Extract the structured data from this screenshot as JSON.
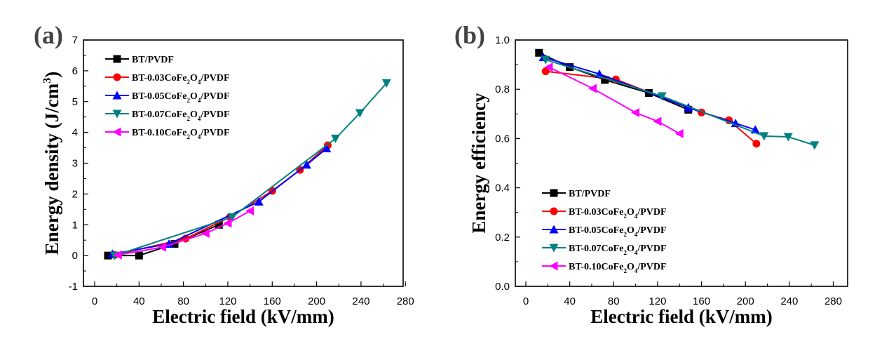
{
  "chart_data": [
    {
      "type": "line",
      "panel_label": "(a)",
      "title": "",
      "xlabel": "Electric field (kV/mm)",
      "ylabel": "Energy density (J/cm3)",
      "ylabel_main": "Energy density (J/cm",
      "ylabel_sup": "3",
      "ylabel_end": ")",
      "xlim": [
        -10,
        290
      ],
      "ylim": [
        -1,
        7
      ],
      "xticks": [
        0,
        40,
        80,
        120,
        160,
        200,
        240,
        280
      ],
      "yticks": [
        -1,
        0,
        1,
        2,
        3,
        4,
        5,
        6,
        7
      ],
      "grid": false,
      "legend_position": "top-left",
      "series": [
        {
          "name": "BT/PVDF",
          "label_parts": [
            "BT/PVDF"
          ],
          "color": "#000000",
          "marker": "square",
          "x": [
            12,
            40,
            72,
            112
          ],
          "y": [
            0.0,
            0.0,
            0.38,
            1.0
          ]
        },
        {
          "name": "BT-0.03CoFe2O4/PVDF",
          "label_parts": [
            "BT-0.03CoFe",
            "2",
            "O",
            "4",
            "/PVDF"
          ],
          "color": "#ff0000",
          "marker": "circle",
          "x": [
            18,
            82,
            122,
            160,
            185,
            210
          ],
          "y": [
            0.02,
            0.55,
            1.25,
            2.1,
            2.78,
            3.58
          ]
        },
        {
          "name": "BT-0.05CoFe2O4/PVDF",
          "label_parts": [
            "BT-0.05CoFe",
            "2",
            "O",
            "4",
            "/PVDF"
          ],
          "color": "#0000ff",
          "marker": "triangle-up",
          "x": [
            16,
            67,
            148,
            191,
            209
          ],
          "y": [
            0.05,
            0.38,
            1.75,
            2.95,
            3.48
          ]
        },
        {
          "name": "BT-0.07CoFe2O4/PVDF",
          "label_parts": [
            "BT-0.07CoFe",
            "2",
            "O",
            "4",
            "/PVDF"
          ],
          "color": "#008080",
          "marker": "triangle-down",
          "x": [
            18,
            124,
            217,
            239,
            263
          ],
          "y": [
            0.0,
            1.25,
            3.8,
            4.63,
            5.6
          ]
        },
        {
          "name": "BT-0.10CoFe2O4/PVDF",
          "label_parts": [
            "BT-0.10CoFe",
            "2",
            "O",
            "4",
            "/PVDF"
          ],
          "color": "#ff00ff",
          "marker": "triangle-left",
          "x": [
            21,
            61,
            100,
            120,
            140
          ],
          "y": [
            0.02,
            0.27,
            0.72,
            1.05,
            1.45
          ]
        }
      ]
    },
    {
      "type": "line",
      "panel_label": "(b)",
      "title": "",
      "xlabel": "Electric field (kV/mm)",
      "ylabel": "Energy efficiency",
      "xlim": [
        -10,
        290
      ],
      "ylim": [
        0.0,
        1.0
      ],
      "xticks": [
        0,
        40,
        80,
        120,
        160,
        200,
        240,
        280
      ],
      "yticks": [
        0.0,
        0.2,
        0.4,
        0.6,
        0.8,
        1.0
      ],
      "ytick_labels": [
        "0.0",
        "0.2",
        "0.4",
        "0.6",
        "0.8",
        "1.0"
      ],
      "grid": false,
      "legend_position": "bottom-left",
      "series": [
        {
          "name": "BT/PVDF",
          "label_parts": [
            "BT/PVDF"
          ],
          "color": "#000000",
          "marker": "square",
          "x": [
            12,
            40,
            72,
            112,
            148
          ],
          "y": [
            0.948,
            0.89,
            0.838,
            0.785,
            0.717
          ]
        },
        {
          "name": "BT-0.03CoFe2O4/PVDF",
          "label_parts": [
            "BT-0.03CoFe",
            "2",
            "O",
            "4",
            "/PVDF"
          ],
          "color": "#ff0000",
          "marker": "circle",
          "x": [
            18,
            82,
            160,
            185,
            210
          ],
          "y": [
            0.873,
            0.84,
            0.706,
            0.674,
            0.579
          ]
        },
        {
          "name": "BT-0.05CoFe2O4/PVDF",
          "label_parts": [
            "BT-0.05CoFe",
            "2",
            "O",
            "4",
            "/PVDF"
          ],
          "color": "#0000ff",
          "marker": "triangle-up",
          "x": [
            16,
            67,
            148,
            191,
            209
          ],
          "y": [
            0.93,
            0.862,
            0.726,
            0.662,
            0.636
          ]
        },
        {
          "name": "BT-0.07CoFe2O4/PVDF",
          "label_parts": [
            "BT-0.07CoFe",
            "2",
            "O",
            "4",
            "/PVDF"
          ],
          "color": "#008080",
          "marker": "triangle-down",
          "x": [
            18,
            124,
            217,
            239,
            263
          ],
          "y": [
            0.92,
            0.772,
            0.61,
            0.607,
            0.573
          ]
        },
        {
          "name": "BT-0.10CoFe2O4/PVDF",
          "label_parts": [
            "BT-0.10CoFe",
            "2",
            "O",
            "4",
            "/PVDF"
          ],
          "color": "#ff00ff",
          "marker": "triangle-left",
          "x": [
            21,
            61,
            100,
            120,
            140
          ],
          "y": [
            0.89,
            0.803,
            0.705,
            0.67,
            0.62
          ]
        }
      ]
    }
  ]
}
